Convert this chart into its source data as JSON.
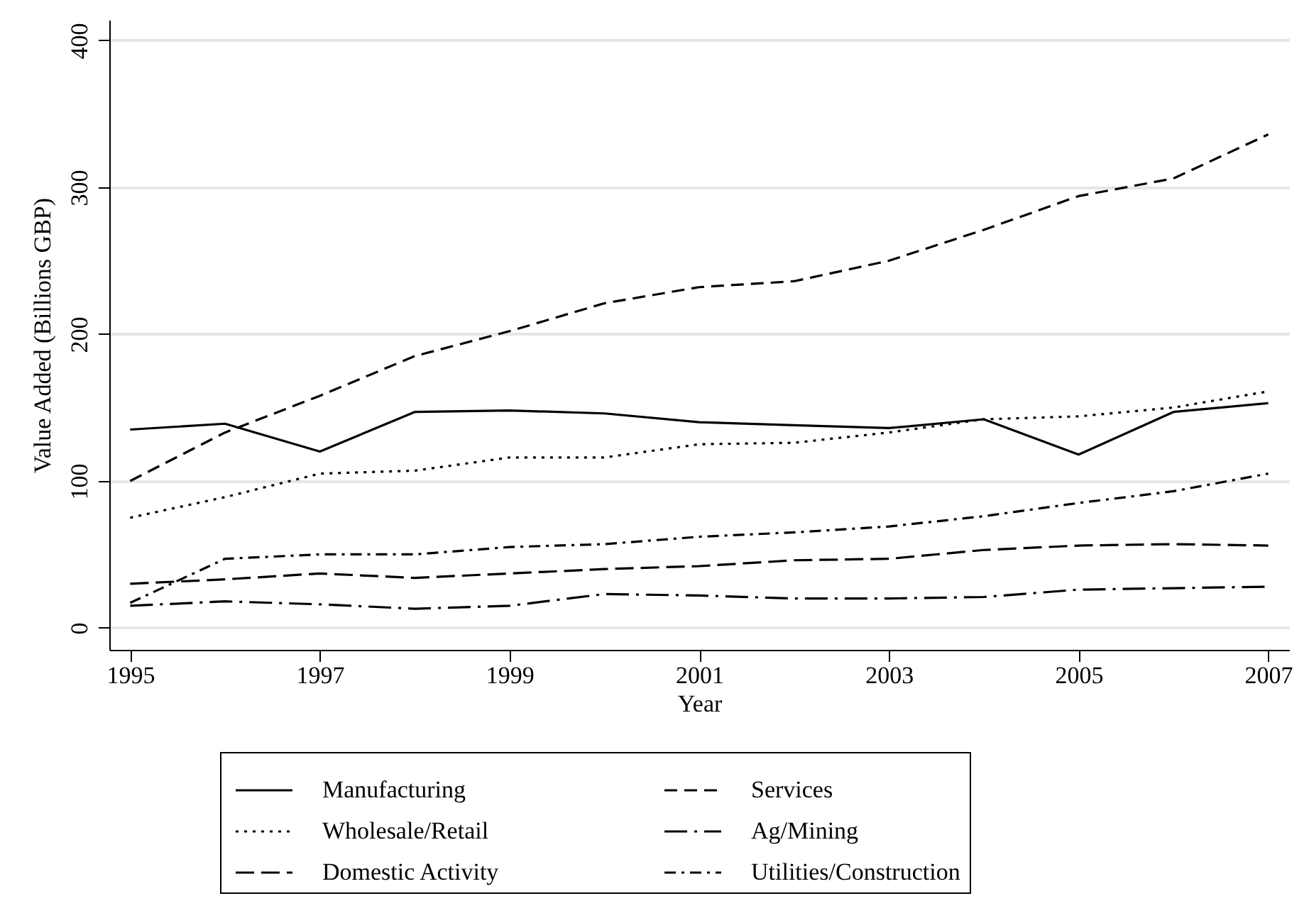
{
  "chart_data": {
    "type": "line",
    "xlabel": "Year",
    "ylabel": "Value Added (Billions GBP)",
    "x": [
      1995,
      1996,
      1997,
      1998,
      1999,
      2000,
      2001,
      2002,
      2003,
      2004,
      2005,
      2006,
      2007
    ],
    "xlim": [
      1994.78,
      2007.22
    ],
    "xticks": [
      1995,
      1997,
      1999,
      2001,
      2003,
      2005,
      2007
    ],
    "ylim": [
      -15,
      414
    ],
    "yticks": [
      0,
      100,
      200,
      300,
      400
    ],
    "grid": "y",
    "legend": "bottom",
    "marker": "none",
    "series": [
      {
        "name": "Manufacturing",
        "color": "#000000",
        "line_style": "solid",
        "values": [
          135,
          139,
          120,
          147,
          148,
          146,
          140,
          138,
          136,
          142,
          118,
          147,
          153
        ]
      },
      {
        "name": "Services",
        "color": "#000000",
        "line_style": "dashed",
        "values": [
          100,
          133,
          158,
          185,
          202,
          221,
          232,
          236,
          250,
          271,
          294,
          306,
          336
        ]
      },
      {
        "name": "Wholesale/Retail",
        "color": "#000000",
        "line_style": "dotted",
        "values": [
          75,
          89,
          105,
          107,
          116,
          116,
          125,
          126,
          133,
          142,
          144,
          150,
          161
        ]
      },
      {
        "name": "Ag/Mining",
        "color": "#000000",
        "line_style": "longdashdot",
        "values": [
          15,
          18,
          16,
          13,
          15,
          23,
          22,
          20,
          20,
          21,
          26,
          27,
          28
        ]
      },
      {
        "name": "Domestic Activity",
        "color": "#000000",
        "line_style": "longdash",
        "values": [
          30,
          33,
          37,
          34,
          37,
          40,
          42,
          46,
          47,
          53,
          56,
          57,
          56
        ]
      },
      {
        "name": "Utilities/Construction",
        "color": "#000000",
        "line_style": "dashdot",
        "values": [
          17,
          47,
          50,
          50,
          55,
          57,
          62,
          65,
          69,
          76,
          85,
          93,
          105
        ]
      }
    ]
  }
}
